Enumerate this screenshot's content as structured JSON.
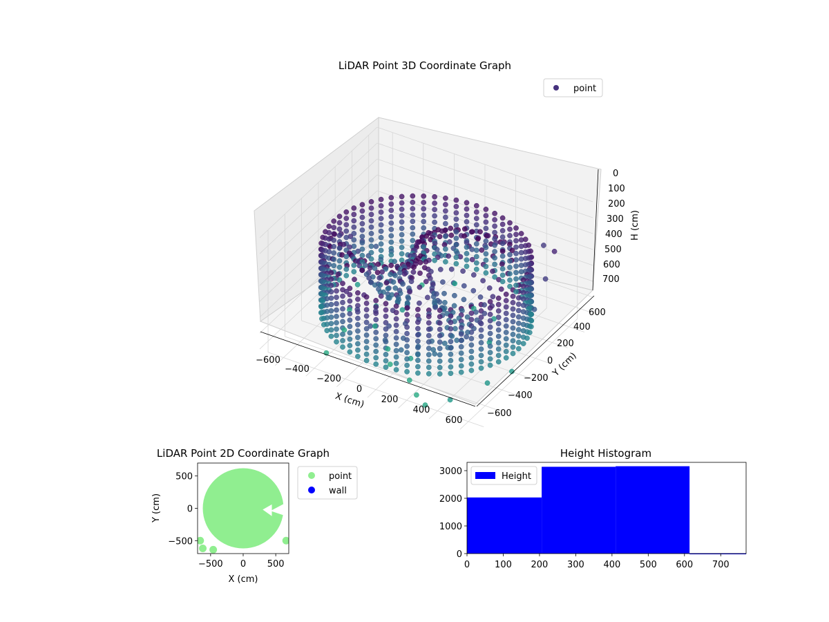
{
  "chart_data": [
    {
      "type": "scatter",
      "title": "LiDAR Point 3D Coordinate Graph",
      "xlabel": "X (cm)",
      "ylabel": "Y (cm)",
      "zlabel": "H (cm)",
      "xlim": [
        -700,
        700
      ],
      "ylim": [
        -700,
        700
      ],
      "zlim": [
        770,
        0
      ],
      "x_ticks": [
        "−600",
        "−400",
        "−200",
        "0",
        "200",
        "400",
        "600"
      ],
      "y_ticks": [
        "−600",
        "−400",
        "−200",
        "0",
        "200",
        "400",
        "600"
      ],
      "z_ticks": [
        "0",
        "100",
        "200",
        "300",
        "400",
        "500",
        "600",
        "700"
      ],
      "legend": [
        {
          "label": "point",
          "color": "#46327e"
        }
      ],
      "legend_position": "top-right",
      "colormap": "viridis",
      "structure": {
        "wall_radius_cm": 600,
        "wall_height_range_cm": [
          200,
          610
        ],
        "sample_heights_cm": [
          210,
          250,
          290,
          330,
          370,
          410,
          450,
          490,
          530,
          570,
          610
        ],
        "sample_angles": 60
      },
      "outlier_points": [
        {
          "x": -560,
          "y": 210,
          "h": 700
        },
        {
          "x": -520,
          "y": 40,
          "h": 760
        },
        {
          "x": -450,
          "y": -150,
          "h": 770
        },
        {
          "x": -380,
          "y": 100,
          "h": 720
        },
        {
          "x": -300,
          "y": -60,
          "h": 740
        },
        {
          "x": -220,
          "y": 120,
          "h": 700
        },
        {
          "x": -140,
          "y": -200,
          "h": 760
        },
        {
          "x": -60,
          "y": -320,
          "h": 770
        },
        {
          "x": 40,
          "y": -260,
          "h": 730
        },
        {
          "x": 120,
          "y": -420,
          "h": 760
        },
        {
          "x": 220,
          "y": -520,
          "h": 770
        },
        {
          "x": 320,
          "y": -600,
          "h": 760
        },
        {
          "x": 460,
          "y": -560,
          "h": 700
        },
        {
          "x": 560,
          "y": -300,
          "h": 690
        },
        {
          "x": 610,
          "y": -100,
          "h": 700
        },
        {
          "x": 620,
          "y": 150,
          "h": 430
        },
        {
          "x": 600,
          "y": 320,
          "h": 330
        },
        {
          "x": 560,
          "y": 500,
          "h": 260
        },
        {
          "x": 430,
          "y": 610,
          "h": 320
        },
        {
          "x": -120,
          "y": 560,
          "h": 720
        },
        {
          "x": -300,
          "y": 500,
          "h": 760
        },
        {
          "x": 80,
          "y": 420,
          "h": 740
        },
        {
          "x": 260,
          "y": 330,
          "h": 700
        },
        {
          "x": -420,
          "y": -420,
          "h": 770
        },
        {
          "x": 350,
          "y": 110,
          "h": 710
        }
      ]
    },
    {
      "type": "scatter",
      "title": "LiDAR Point 2D Coordinate Graph",
      "xlabel": "X (cm)",
      "ylabel": "Y (cm)",
      "xlim": [
        -700,
        700
      ],
      "ylim": [
        -700,
        700
      ],
      "x_ticks": [
        -500,
        0,
        500
      ],
      "y_ticks": [
        -500,
        0,
        500
      ],
      "series": [
        {
          "name": "point",
          "color": "#90ee90",
          "footprint_radius_cm": 620
        },
        {
          "name": "wall",
          "color": "#0000ff",
          "values": []
        }
      ],
      "outlier_points": [
        {
          "x": -660,
          "y": -500
        },
        {
          "x": -620,
          "y": -620
        },
        {
          "x": -460,
          "y": -640
        },
        {
          "x": 660,
          "y": -500
        },
        {
          "x": 520,
          "y": 130
        }
      ],
      "legend_position": "outside-right"
    },
    {
      "type": "bar",
      "title": "Height Histogram",
      "xlim": [
        0,
        770
      ],
      "ylim": [
        0,
        3300
      ],
      "x_ticks": [
        0,
        100,
        200,
        300,
        400,
        500,
        600,
        700
      ],
      "y_ticks": [
        0,
        1000,
        2000,
        3000
      ],
      "series": [
        {
          "name": "Height",
          "color": "#0000ff",
          "bins": [
            {
              "x0": 0,
              "x1": 206,
              "value": 2030
            },
            {
              "x0": 206,
              "x1": 410,
              "value": 3140
            },
            {
              "x0": 410,
              "x1": 614,
              "value": 3160
            },
            {
              "x0": 614,
              "x1": 770,
              "value": 12
            }
          ]
        }
      ],
      "legend_position": "top-left"
    }
  ]
}
